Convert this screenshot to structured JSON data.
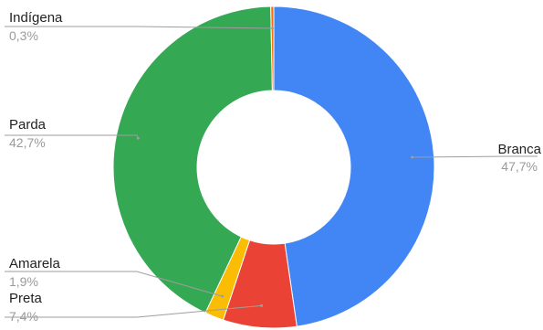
{
  "chart_data": {
    "type": "pie",
    "variant": "donut",
    "legend": "none",
    "slices": [
      {
        "label": "Branca",
        "percent_label": "47,7%",
        "value": 47.7,
        "color": "#4285f4"
      },
      {
        "label": "Preta",
        "percent_label": "7,4%",
        "value": 7.4,
        "color": "#ea4335"
      },
      {
        "label": "Amarela",
        "percent_label": "1,9%",
        "value": 1.9,
        "color": "#fbbc04"
      },
      {
        "label": "Parda",
        "percent_label": "42,7%",
        "value": 42.7,
        "color": "#34a853"
      },
      {
        "label": "Indígena",
        "percent_label": "0,3%",
        "value": 0.3,
        "color": "#ff6d01"
      }
    ]
  }
}
